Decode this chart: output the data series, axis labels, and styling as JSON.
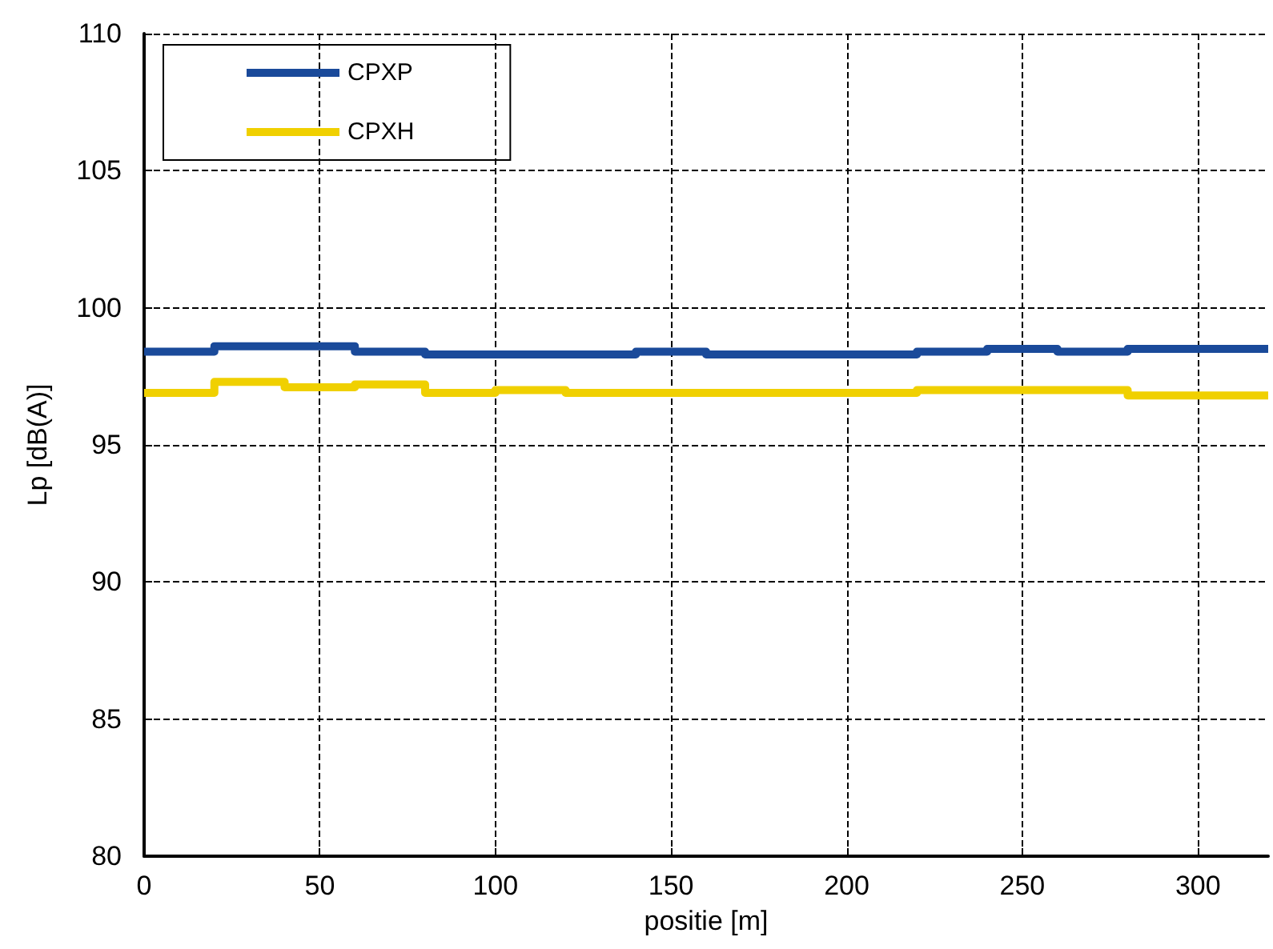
{
  "chart_data": {
    "type": "step",
    "xlabel": "positie [m]",
    "ylabel": "Lp [dB(A)]",
    "x": [
      0,
      20,
      40,
      60,
      80,
      100,
      120,
      140,
      160,
      180,
      200,
      220,
      240,
      260,
      280,
      300,
      320
    ],
    "series": [
      {
        "name": "CPXP",
        "color": "#1a4a9a",
        "values": [
          98.4,
          98.6,
          98.6,
          98.4,
          98.3,
          98.3,
          98.3,
          98.4,
          98.3,
          98.3,
          98.3,
          98.4,
          98.5,
          98.4,
          98.5,
          98.5,
          98.5
        ]
      },
      {
        "name": "CPXH",
        "color": "#f0d000",
        "values": [
          96.9,
          97.3,
          97.1,
          97.2,
          96.9,
          97.0,
          96.9,
          96.9,
          96.9,
          96.9,
          96.9,
          97.0,
          97.0,
          97.0,
          96.8,
          96.8,
          96.8
        ]
      }
    ],
    "xlim": [
      0,
      320
    ],
    "xticks": [
      0,
      50,
      100,
      150,
      200,
      250,
      300
    ],
    "ylim": [
      80,
      110
    ],
    "yticks": [
      80,
      85,
      90,
      95,
      100,
      105,
      110
    ],
    "grid": true,
    "legend": "top left",
    "marker": "none",
    "line_style": "solid"
  }
}
